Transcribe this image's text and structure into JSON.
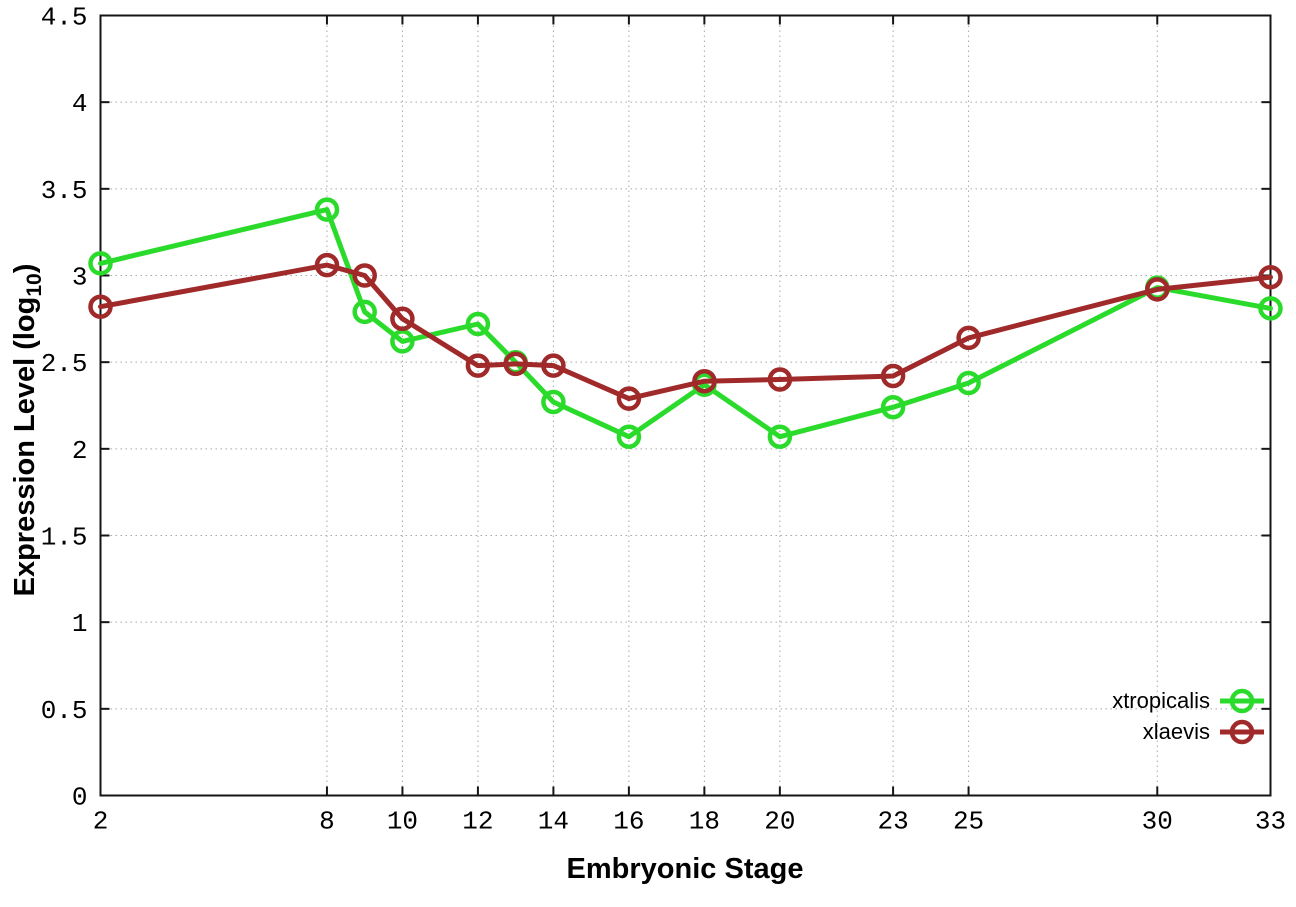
{
  "figure": {
    "background": "#ffffff"
  },
  "chart_data": {
    "type": "line",
    "title": "",
    "xlabel": "Embryonic Stage",
    "ylabel": "Expression Level (log10)",
    "ylabel_parts": {
      "pre": "Expression Level (log",
      "sub": "10",
      "post": ")"
    },
    "x": [
      2,
      8,
      9,
      10,
      12,
      13,
      14,
      16,
      18,
      20,
      23,
      25,
      30,
      33
    ],
    "series": [
      {
        "name": "xtropicalis",
        "color": "#2bdb2b",
        "marker": "open-circle",
        "values": [
          3.07,
          3.38,
          2.79,
          2.62,
          2.72,
          2.5,
          2.27,
          2.07,
          2.37,
          2.07,
          2.24,
          2.38,
          2.93,
          2.81
        ]
      },
      {
        "name": "xlaevis",
        "color": "#a02a2a",
        "marker": "open-circle",
        "values": [
          2.82,
          3.06,
          3.0,
          2.75,
          2.48,
          2.49,
          2.48,
          2.29,
          2.39,
          2.4,
          2.42,
          2.64,
          2.92,
          2.99
        ]
      }
    ],
    "xlim": [
      2,
      33
    ],
    "ylim": [
      0,
      4.5
    ],
    "x_ticks": [
      2,
      8,
      10,
      12,
      14,
      16,
      18,
      20,
      23,
      25,
      30,
      33
    ],
    "y_ticks": [
      0,
      0.5,
      1,
      1.5,
      2,
      2.5,
      3,
      3.5,
      4,
      4.5
    ],
    "grid": true,
    "grid_style": "dotted",
    "legend_position": "inside-bottom-right",
    "colors": {
      "grid": "#a8a8a8",
      "axis": "#151515",
      "text": "#000000"
    }
  }
}
